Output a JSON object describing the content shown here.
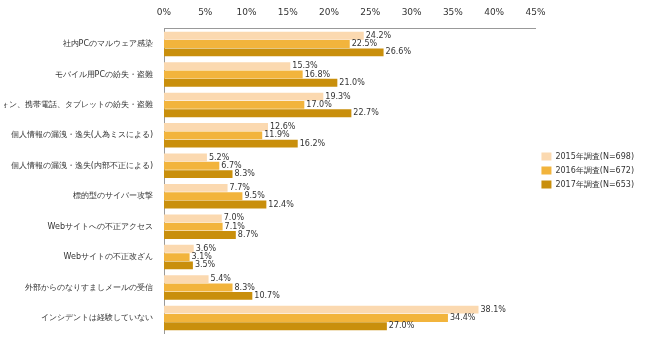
{
  "chart_data": {
    "type": "bar",
    "orientation": "horizontal",
    "categories": [
      "社内PCのマルウェア感染",
      "モバイル用PCの紛失・盗難",
      "スマートフォン、携帯電話、タブレットの紛失・盗難",
      "個人情報の漏洩・逸失(人為ミスによる)",
      "個人情報の漏洩・逸失(内部不正による)",
      "標的型のサイバー攻撃",
      "Webサイトへの不正アクセス",
      "Webサイトの不正改ざん",
      "外部からのなりすましメールの受信",
      "インシデントは経験していない"
    ],
    "series": [
      {
        "name": "2015年調査(N=698)",
        "color": "#fbd9b0",
        "values": [
          24.2,
          15.3,
          19.3,
          12.6,
          5.2,
          7.7,
          7.0,
          3.6,
          5.4,
          38.1
        ],
        "value_labels": [
          "24.2%",
          "15.3%",
          "19.3%",
          "12.6%",
          "5.2%",
          "7.7%",
          "7.0%",
          "3.6%",
          "5.4%",
          "38.1%"
        ]
      },
      {
        "name": "2016年調査(N=672)",
        "color": "#f2b43c",
        "values": [
          22.5,
          16.8,
          17.0,
          11.9,
          6.7,
          9.5,
          7.1,
          3.1,
          8.3,
          34.4
        ],
        "value_labels": [
          "22.5%",
          "16.8%",
          "17.0%",
          "11.9%",
          "6.7%",
          "9.5%",
          "7.1%",
          "3.1%",
          "8.3%",
          "34.4%"
        ]
      },
      {
        "name": "2017年調査(N=653)",
        "color": "#c98f0c",
        "values": [
          26.6,
          21.0,
          22.7,
          16.2,
          8.3,
          12.4,
          8.7,
          3.5,
          10.7,
          27.0
        ],
        "value_labels": [
          "26.6%",
          "21.0%",
          "22.7%",
          "16.2%",
          "8.3%",
          "12.4%",
          "8.7%",
          "3.5%",
          "10.7%",
          "27.0%"
        ]
      }
    ],
    "xlim": [
      0,
      45
    ],
    "xticks": [
      {
        "value": 0,
        "label": "0%"
      },
      {
        "value": 5,
        "label": "5%"
      },
      {
        "value": 10,
        "label": "10%"
      },
      {
        "value": 15,
        "label": "15%"
      },
      {
        "value": 20,
        "label": "20%"
      },
      {
        "value": 25,
        "label": "25%"
      },
      {
        "value": 30,
        "label": "30%"
      },
      {
        "value": 35,
        "label": "35%"
      },
      {
        "value": 40,
        "label": "40%"
      },
      {
        "value": 45,
        "label": "45%"
      }
    ],
    "data_labels": true,
    "legend": "right",
    "grid": false
  }
}
